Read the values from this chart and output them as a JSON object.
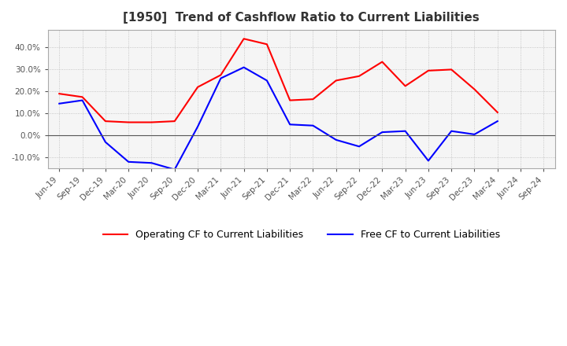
{
  "title": "[1950]  Trend of Cashflow Ratio to Current Liabilities",
  "x_labels": [
    "Jun-19",
    "Sep-19",
    "Dec-19",
    "Mar-20",
    "Jun-20",
    "Sep-20",
    "Dec-20",
    "Mar-21",
    "Jun-21",
    "Sep-21",
    "Dec-21",
    "Mar-22",
    "Jun-22",
    "Sep-22",
    "Dec-22",
    "Mar-23",
    "Jun-23",
    "Sep-23",
    "Dec-23",
    "Mar-24",
    "Jun-24",
    "Sep-24"
  ],
  "operating_cf": [
    0.19,
    0.175,
    0.065,
    0.06,
    0.06,
    0.065,
    0.22,
    0.275,
    0.44,
    0.415,
    0.16,
    0.165,
    0.25,
    0.27,
    0.335,
    0.225,
    0.295,
    0.3,
    0.21,
    0.105,
    null,
    null
  ],
  "free_cf": [
    0.145,
    0.16,
    -0.03,
    -0.12,
    -0.125,
    -0.155,
    0.04,
    0.26,
    0.31,
    0.25,
    0.05,
    0.045,
    -0.02,
    -0.05,
    0.015,
    0.02,
    -0.115,
    0.02,
    0.005,
    0.065,
    null,
    null
  ],
  "ylim": [
    -0.15,
    0.48
  ],
  "yticks": [
    -0.1,
    0.0,
    0.1,
    0.2,
    0.3,
    0.4
  ],
  "operating_color": "#ff0000",
  "free_color": "#0000ff",
  "background_color": "#ffffff",
  "plot_bg_color": "#f5f5f5",
  "grid_color": "#aaaaaa",
  "zero_line_color": "#555555",
  "legend_operating": "Operating CF to Current Liabilities",
  "legend_free": "Free CF to Current Liabilities",
  "title_color": "#333333",
  "tick_color": "#555555"
}
